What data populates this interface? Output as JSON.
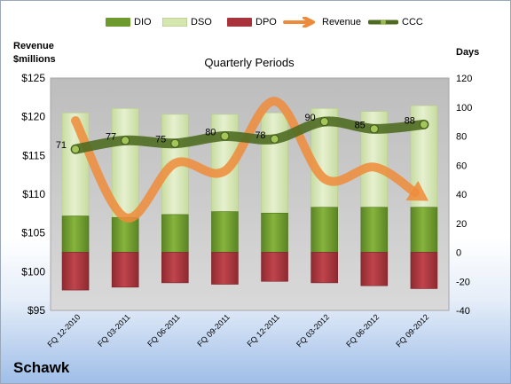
{
  "left_axis_title": [
    "Revenue",
    "$millions"
  ],
  "right_axis_title": "Days",
  "plot_title": "Quarterly Periods",
  "company": "Schawk",
  "colors": {
    "dio": "#6d9a2c",
    "dso": "#d6e6b0",
    "dpo": "#a8333b",
    "revenue": "#ee8b3a",
    "ccc": "#4f6b22",
    "plot_bg": "#c9c9c9"
  },
  "chart_data": {
    "type": "bar",
    "title": "Quarterly Periods",
    "categories": [
      "FQ 12-2010",
      "FQ 03-2011",
      "FQ 06-2011",
      "FQ 09-2011",
      "FQ 12-2011",
      "FQ 03-2012",
      "FQ 06-2012",
      "FQ 09-2012"
    ],
    "y_left": {
      "label": "Revenue $millions",
      "ylim": [
        95,
        125
      ],
      "ticks": [
        "$95",
        "$100",
        "$105",
        "$110",
        "$115",
        "$120",
        "$125"
      ]
    },
    "y_right": {
      "label": "Days",
      "ylim": [
        -40,
        120
      ],
      "ticks": [
        "-40",
        "-20",
        "0",
        "20",
        "40",
        "60",
        "80",
        "100",
        "120"
      ]
    },
    "legend_position": "top",
    "series": [
      {
        "name": "DIO",
        "type": "stacked-bar",
        "axis": "right",
        "values": [
          25,
          24,
          26,
          28,
          27,
          31,
          31,
          31
        ]
      },
      {
        "name": "DSO",
        "type": "stacked-bar",
        "axis": "right",
        "values": [
          71,
          75,
          69,
          67,
          69,
          68,
          66,
          70
        ]
      },
      {
        "name": "DPO",
        "type": "bar-negative",
        "axis": "right",
        "values": [
          -26,
          -24,
          -21,
          -22,
          -20,
          -21,
          -23,
          -25
        ]
      },
      {
        "name": "Revenue",
        "type": "line",
        "axis": "left",
        "values": [
          119.5,
          107.0,
          114.0,
          113.0,
          122.0,
          112.0,
          113.5,
          109.5
        ]
      },
      {
        "name": "CCC",
        "type": "line",
        "axis": "right",
        "values": [
          71,
          77,
          75,
          80,
          78,
          90,
          85,
          88
        ]
      }
    ],
    "data_labels": [
      "71",
      "77",
      "75",
      "80",
      "78",
      "90",
      "85",
      "88"
    ]
  }
}
